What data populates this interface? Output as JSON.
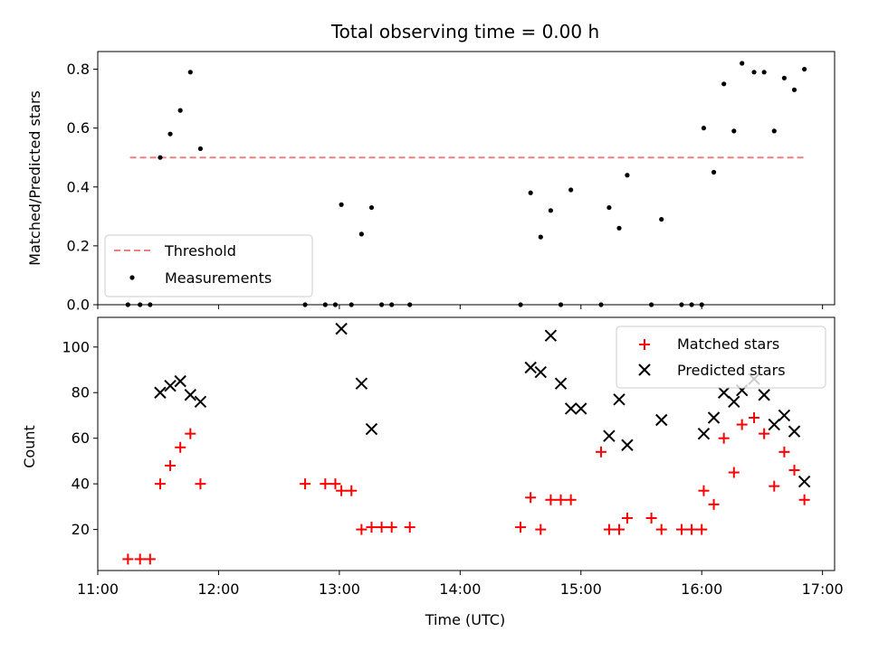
{
  "chart_data": [
    {
      "type": "scatter",
      "title": "Total observing time = 0.00 h",
      "xlabel": "",
      "ylabel": "Matched/Predicted stars",
      "ylim": [
        0,
        0.86
      ],
      "yticks": [
        0.0,
        0.2,
        0.4,
        0.6,
        0.8
      ],
      "ytick_labels": [
        "0.0",
        "0.2",
        "0.4",
        "0.6",
        "0.8"
      ],
      "grid": false,
      "legend": "lower-left",
      "threshold": {
        "name": "Threshold",
        "y": 0.5,
        "x_range": [
          "11:16",
          "16:52"
        ],
        "color": "#f08080"
      },
      "series": [
        {
          "name": "Measurements",
          "color": "#000000",
          "x": [
            "11:15",
            "11:21",
            "11:26",
            "11:31",
            "11:36",
            "11:41",
            "11:46",
            "11:51",
            "12:43",
            "12:53",
            "12:58",
            "13:01",
            "13:06",
            "13:11",
            "13:16",
            "13:21",
            "13:26",
            "13:35",
            "14:30",
            "14:35",
            "14:40",
            "14:45",
            "14:50",
            "14:55",
            "15:10",
            "15:14",
            "15:19",
            "15:23",
            "15:35",
            "15:40",
            "15:50",
            "15:55",
            "16:00",
            "16:01",
            "16:06",
            "16:11",
            "16:16",
            "16:20",
            "16:26",
            "16:31",
            "16:36",
            "16:41",
            "16:46",
            "16:51"
          ],
          "y": [
            0,
            0,
            0,
            0.5,
            0.58,
            0.66,
            0.79,
            0.53,
            0,
            0,
            0,
            0.34,
            0,
            0.24,
            0.33,
            0,
            0,
            0,
            0,
            0.38,
            0.23,
            0.32,
            0,
            0.39,
            0,
            0.33,
            0.26,
            0.44,
            0,
            0.29,
            0,
            0,
            0,
            0.6,
            0.45,
            0.75,
            0.59,
            0.82,
            0.79,
            0.79,
            0.59,
            0.77,
            0.73,
            0.8
          ]
        }
      ]
    },
    {
      "type": "scatter",
      "title": "",
      "xlabel": "Time (UTC)",
      "ylabel": "Count",
      "ylim": [
        2,
        113
      ],
      "yticks": [
        20,
        40,
        60,
        80,
        100
      ],
      "ytick_labels": [
        "20",
        "40",
        "60",
        "80",
        "100"
      ],
      "xlim": [
        "11:00",
        "17:06"
      ],
      "xticks": [
        "11:00",
        "12:00",
        "13:00",
        "14:00",
        "15:00",
        "16:00",
        "17:00"
      ],
      "grid": false,
      "legend": "upper-right",
      "series": [
        {
          "name": "Matched stars",
          "color": "#ff0000",
          "marker": "plus",
          "x": [
            "11:15",
            "11:21",
            "11:26",
            "11:31",
            "11:36",
            "11:41",
            "11:46",
            "11:51",
            "12:43",
            "12:53",
            "12:58",
            "13:01",
            "13:06",
            "13:11",
            "13:16",
            "13:21",
            "13:26",
            "13:35",
            "14:30",
            "14:35",
            "14:40",
            "14:45",
            "14:50",
            "14:55",
            "15:10",
            "15:14",
            "15:19",
            "15:23",
            "15:35",
            "15:40",
            "15:50",
            "15:55",
            "16:00",
            "16:01",
            "16:06",
            "16:11",
            "16:16",
            "16:20",
            "16:26",
            "16:31",
            "16:36",
            "16:41",
            "16:46",
            "16:51"
          ],
          "y": [
            7,
            7,
            7,
            40,
            48,
            56,
            62,
            40,
            40,
            40,
            40,
            37,
            37,
            20,
            21,
            21,
            21,
            21,
            21,
            34,
            20,
            33,
            33,
            33,
            54,
            20,
            20,
            25,
            25,
            20,
            20,
            20,
            20,
            37,
            31,
            60,
            45,
            66,
            69,
            62,
            39,
            54,
            46,
            33
          ]
        },
        {
          "name": "Predicted stars",
          "color": "#000000",
          "marker": "x",
          "x": [
            "11:31",
            "11:36",
            "11:41",
            "11:46",
            "11:51",
            "13:01",
            "13:11",
            "13:16",
            "14:35",
            "14:40",
            "14:45",
            "14:50",
            "14:55",
            "15:00",
            "15:14",
            "15:19",
            "15:23",
            "15:40",
            "16:01",
            "16:06",
            "16:11",
            "16:16",
            "16:20",
            "16:26",
            "16:31",
            "16:36",
            "16:41",
            "16:46",
            "16:51"
          ],
          "y": [
            80,
            83,
            85,
            79,
            76,
            108,
            84,
            64,
            91,
            89,
            105,
            84,
            73,
            73,
            61,
            77,
            57,
            68,
            62,
            69,
            80,
            76,
            81,
            86,
            79,
            66,
            70,
            63,
            41
          ]
        }
      ]
    }
  ]
}
